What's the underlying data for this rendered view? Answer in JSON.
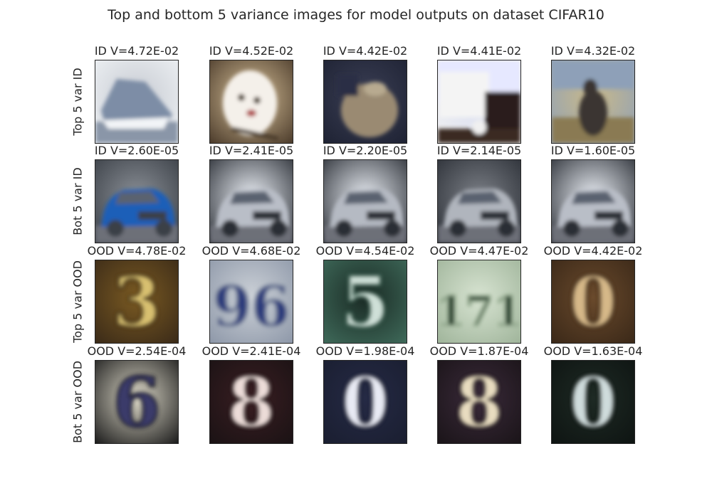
{
  "figure": {
    "title": "Top and bottom 5 variance images for model outputs on dataset CIFAR10"
  },
  "rows": [
    {
      "label": "Top 5 var ID",
      "images": [
        {
          "caption": "ID V=4.72E-02",
          "subject": "boat",
          "colors": [
            "#c7cbd2",
            "#7d8da6",
            "#eef1f4"
          ]
        },
        {
          "caption": "ID V=4.52E-02",
          "subject": "dog",
          "colors": [
            "#d9c29a",
            "#f4f0ea",
            "#4a3a2a"
          ]
        },
        {
          "caption": "ID V=4.42E-02",
          "subject": "animal",
          "colors": [
            "#3b3f55",
            "#9a8a72",
            "#1e2233"
          ]
        },
        {
          "caption": "ID V=4.41E-02",
          "subject": "truck",
          "colors": [
            "#d7dcf0",
            "#2a1e1a",
            "#f2f2f2"
          ]
        },
        {
          "caption": "ID V=4.32E-02",
          "subject": "deer",
          "colors": [
            "#c9b98a",
            "#3a3530",
            "#8ea0b8"
          ]
        }
      ]
    },
    {
      "label": "Bot 5 var ID",
      "images": [
        {
          "caption": "ID V=2.60E-05",
          "subject": "blue-car",
          "colors": [
            "#8a8f96",
            "#1f5fb8",
            "#3a3f46"
          ]
        },
        {
          "caption": "ID V=2.41E-05",
          "subject": "silver-car",
          "colors": [
            "#e8ecf2",
            "#b9bec7",
            "#2b2f36"
          ]
        },
        {
          "caption": "ID V=2.20E-05",
          "subject": "silver-car",
          "colors": [
            "#e6eaf0",
            "#b5bac3",
            "#2b2f36"
          ]
        },
        {
          "caption": "ID V=2.14E-05",
          "subject": "silver-car",
          "colors": [
            "#7b7f86",
            "#b0b5bd",
            "#2b2f36"
          ]
        },
        {
          "caption": "ID V=1.60E-05",
          "subject": "silver-car",
          "colors": [
            "#e8ecf2",
            "#b9bec7",
            "#2b2f36"
          ]
        }
      ]
    },
    {
      "label": "Top 5 var OOD",
      "images": [
        {
          "caption": "OOD V=4.78E-02",
          "subject": "digit",
          "digit": "3",
          "colors": [
            "#7a5a22",
            "#d8c070",
            "#3a2a18"
          ]
        },
        {
          "caption": "OOD V=4.68E-02",
          "subject": "digit",
          "digit": "96",
          "colors": [
            "#cdd2d8",
            "#2c3a7a",
            "#8d97a8"
          ]
        },
        {
          "caption": "OOD V=4.54E-02",
          "subject": "digit",
          "digit": "5",
          "colors": [
            "#1a2a24",
            "#cfe0d8",
            "#3f6a5a"
          ]
        },
        {
          "caption": "OOD V=4.47E-02",
          "subject": "digit",
          "digit": "171",
          "colors": [
            "#d8e4d2",
            "#1f3a26",
            "#9fb49a"
          ]
        },
        {
          "caption": "OOD V=4.42E-02",
          "subject": "digit",
          "digit": "0",
          "colors": [
            "#6a4a2c",
            "#d6b888",
            "#3a2818"
          ]
        }
      ]
    },
    {
      "label": "Bot 5 var OOD",
      "images": [
        {
          "caption": "OOD V=2.54E-04",
          "subject": "digit",
          "digit": "6",
          "colors": [
            "#dcd8c8",
            "#3a3a6a",
            "#1a1a1a"
          ]
        },
        {
          "caption": "OOD V=2.41E-04",
          "subject": "digit",
          "digit": "8",
          "colors": [
            "#3a1e22",
            "#ecdcd8",
            "#1a1214"
          ]
        },
        {
          "caption": "OOD V=1.98E-04",
          "subject": "digit",
          "digit": "0",
          "colors": [
            "#252a45",
            "#e8eaf4",
            "#1a1e30"
          ]
        },
        {
          "caption": "OOD V=1.87E-04",
          "subject": "digit",
          "digit": "8",
          "colors": [
            "#3a2a3a",
            "#e8dcc0",
            "#1a1418"
          ]
        },
        {
          "caption": "OOD V=1.63E-04",
          "subject": "digit",
          "digit": "0",
          "colors": [
            "#1e2a24",
            "#cfdcdc",
            "#0e1412"
          ]
        }
      ]
    }
  ]
}
